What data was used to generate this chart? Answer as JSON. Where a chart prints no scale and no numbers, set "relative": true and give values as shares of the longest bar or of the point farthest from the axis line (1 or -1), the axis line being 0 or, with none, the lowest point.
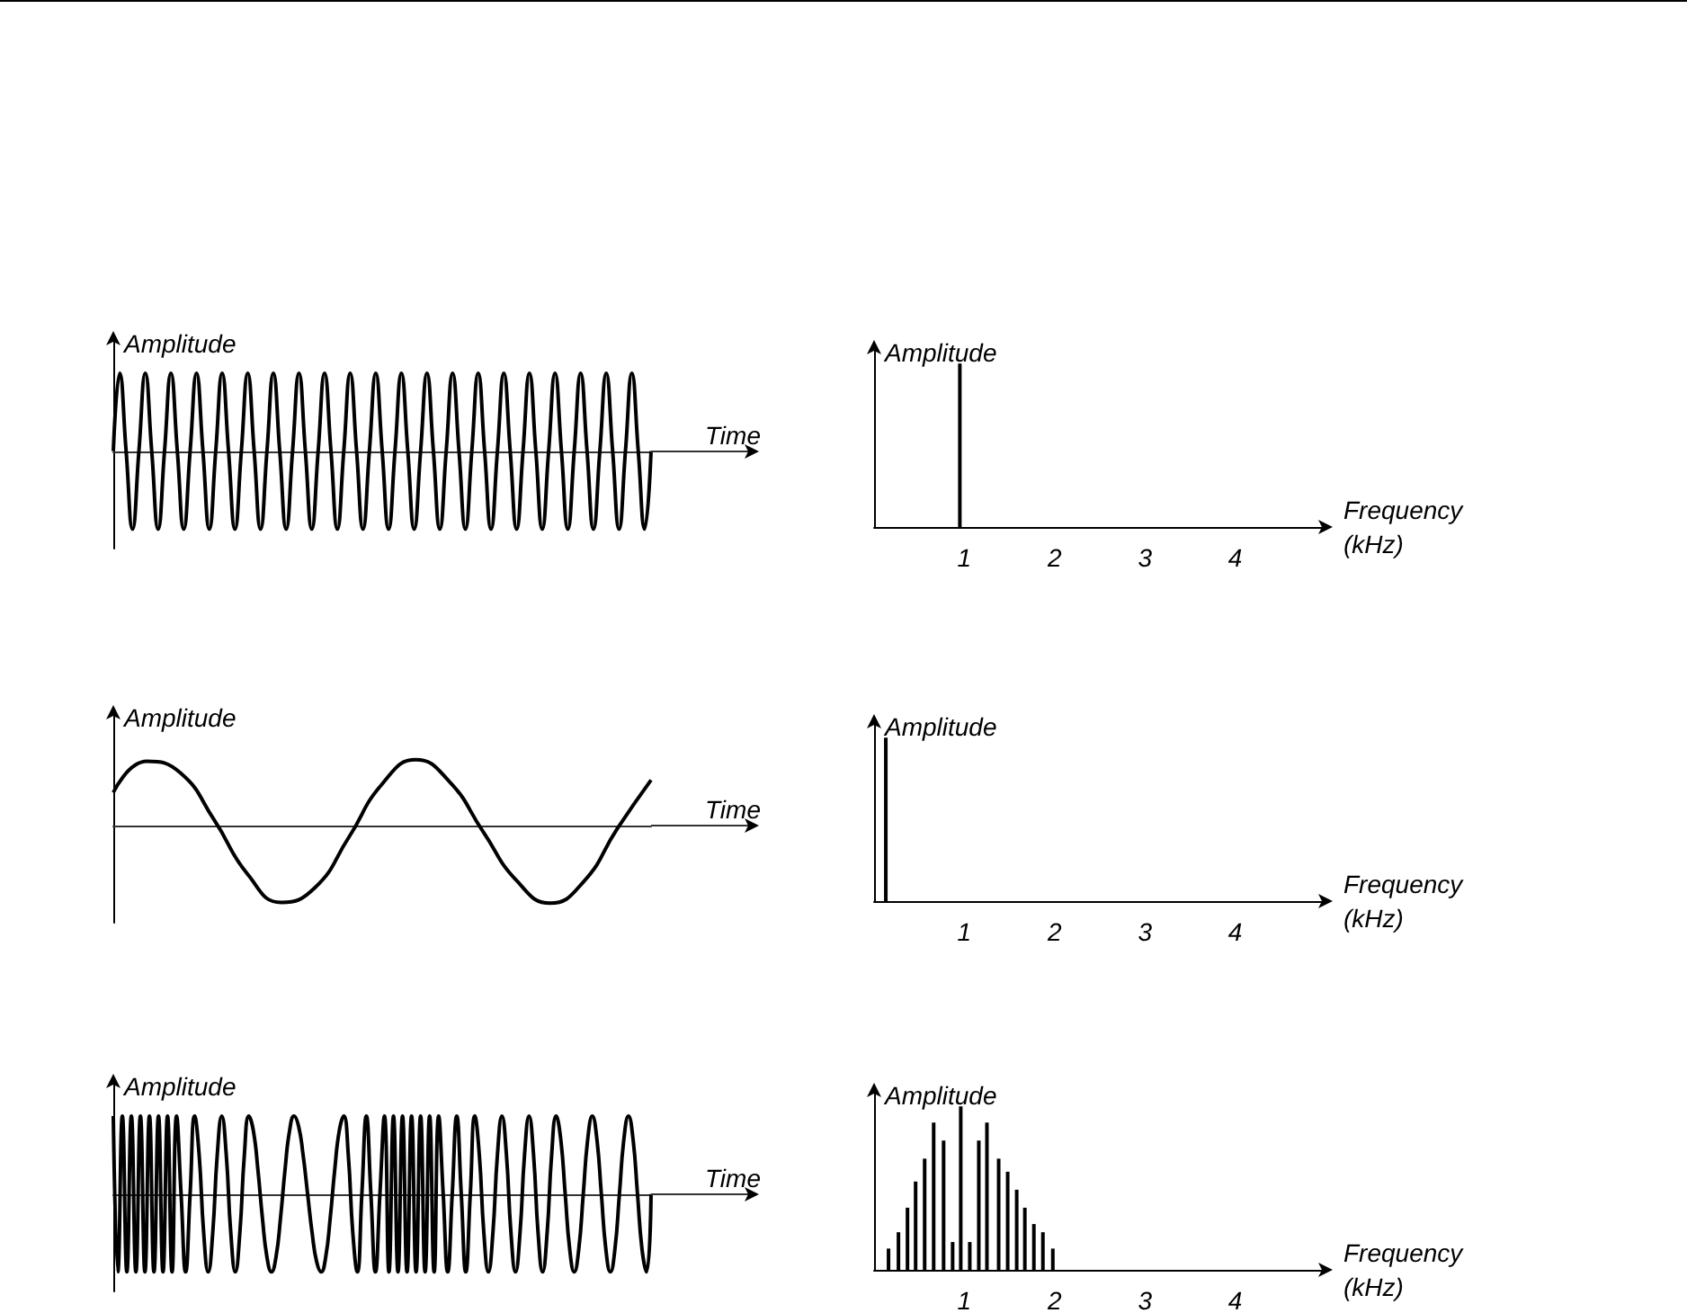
{
  "chart_data": [
    {
      "type": "line",
      "relative": true,
      "ylabel": "Amplitude",
      "xlabel": "Time",
      "color": "#000000",
      "categories": [
        null,
        null,
        null,
        null,
        null,
        null,
        null,
        null,
        null,
        null,
        null,
        null,
        null,
        null,
        null,
        null,
        null,
        null,
        null,
        null,
        null,
        null,
        null,
        null,
        null,
        null,
        null,
        null,
        null,
        null,
        null,
        null,
        null,
        null,
        null,
        null,
        null,
        null,
        null,
        null,
        null,
        null,
        null,
        null,
        null,
        null,
        null,
        null,
        null,
        null,
        null,
        null,
        null,
        null,
        null,
        null,
        null,
        null,
        null,
        null,
        null,
        null,
        null,
        null,
        null,
        null,
        null,
        null,
        null,
        null,
        null,
        null,
        null,
        null,
        null,
        null,
        null,
        null,
        null,
        null,
        null,
        null,
        null,
        null,
        null
      ],
      "values": [
        0,
        1,
        0,
        -1,
        0,
        1,
        0,
        -1,
        0,
        1,
        0,
        -1,
        0,
        1,
        0,
        -1,
        0,
        1,
        0,
        -1,
        0,
        1,
        0,
        -1,
        0,
        1,
        0,
        -1,
        0,
        1,
        0,
        -1,
        0,
        1,
        0,
        -1,
        0,
        1,
        0,
        -1,
        0,
        1,
        0,
        -1,
        0,
        1,
        0,
        -1,
        0,
        1,
        0,
        -1,
        0,
        1,
        0,
        -1,
        0,
        1,
        0,
        -1,
        0,
        1,
        0,
        -1,
        0,
        1,
        0,
        -1,
        0,
        1,
        0,
        -1,
        0,
        1,
        0,
        -1,
        0,
        1,
        0,
        -1,
        0,
        1,
        0,
        -1,
        0
      ]
    },
    {
      "type": "bar",
      "relative": true,
      "ylabel": "Amplitude",
      "xlabel": "Frequency (kHz)",
      "color": "#000000",
      "xlim": [
        0,
        5
      ],
      "xticks": [
        1,
        2,
        3,
        4
      ],
      "x": [
        0.95
      ],
      "values": [
        1
      ]
    },
    {
      "type": "line",
      "relative": true,
      "ylabel": "Amplitude",
      "xlabel": "Time",
      "color": "#000000",
      "categories": [
        null,
        null,
        null,
        null,
        null,
        null,
        null,
        null,
        null,
        null,
        null,
        null,
        null,
        null,
        null,
        null,
        null
      ],
      "values": [
        0.42,
        0.82,
        0.67,
        0.07,
        -0.63,
        -0.99,
        -0.8,
        -0.16,
        0.53,
        0.84,
        0.56,
        -0.08,
        -0.71,
        -1,
        -0.72,
        -0.04,
        0.58
      ]
    },
    {
      "type": "bar",
      "relative": true,
      "ylabel": "Amplitude",
      "xlabel": "Frequency (kHz)",
      "color": "#000000",
      "xlim": [
        0,
        5
      ],
      "xticks": [
        1,
        2,
        3,
        4
      ],
      "x": [
        0.13
      ],
      "values": [
        1
      ]
    },
    {
      "type": "line",
      "relative": true,
      "ylabel": "Amplitude",
      "xlabel": "Time",
      "color": "#000000",
      "categories": [
        null,
        null,
        null,
        null,
        null,
        null,
        null,
        null,
        null,
        null,
        null,
        null,
        null,
        null,
        null,
        null,
        null,
        null,
        null,
        null,
        null,
        null,
        null,
        null,
        null,
        null,
        null,
        null,
        null,
        null,
        null,
        null,
        null,
        null,
        null,
        null,
        null,
        null,
        null,
        null,
        null,
        null,
        null,
        null,
        null,
        null,
        null,
        null,
        null,
        null,
        null,
        null,
        null,
        null,
        null,
        null,
        null,
        null,
        null,
        null,
        null,
        null,
        null,
        null,
        null,
        null,
        null,
        null,
        null,
        null,
        null,
        null,
        null,
        null,
        null,
        null,
        null,
        null,
        null,
        null,
        null,
        null,
        null,
        null,
        null,
        null,
        null,
        null,
        null,
        null,
        null,
        null,
        null,
        null,
        null,
        null,
        null,
        null,
        null,
        null,
        null,
        null,
        null,
        null,
        null,
        null,
        null,
        null,
        null,
        null,
        null,
        null,
        null,
        null,
        null,
        null,
        null,
        null,
        null,
        null
      ],
      "values": [
        1,
        -1,
        1,
        -1,
        1,
        -1,
        1,
        -1,
        1,
        -1,
        1,
        -1,
        1,
        -1,
        1,
        0,
        -1,
        0,
        1,
        0.5,
        -0.5,
        -1,
        -0.5,
        0.5,
        1,
        0.5,
        -0.5,
        -1,
        -0.5,
        0.5,
        1,
        0.81,
        0.31,
        -0.31,
        -0.81,
        -1,
        -0.81,
        -0.31,
        0.31,
        0.81,
        1,
        0.87,
        0.5,
        0,
        -0.5,
        -0.87,
        -1,
        -0.81,
        -0.31,
        0.31,
        0.81,
        1,
        0.5,
        -0.5,
        -1,
        0,
        1,
        0,
        -1,
        0,
        1,
        -1,
        1,
        -1,
        1,
        -1,
        1,
        -1,
        1,
        -1,
        1,
        -1,
        1,
        0,
        -1,
        0,
        1,
        0,
        -1,
        0,
        1,
        0.5,
        -0.5,
        -1,
        -0.5,
        0.5,
        1,
        0.5,
        -0.5,
        -1,
        -0.5,
        0.5,
        1,
        0.5,
        -0.5,
        -1,
        -0.5,
        0.5,
        1,
        0.71,
        0,
        -0.71,
        -1,
        -0.71,
        0,
        0.71,
        1,
        0.71,
        0,
        -0.71,
        -1,
        -0.71,
        0,
        0.71,
        1,
        0.71,
        0,
        -0.71,
        -1,
        0
      ]
    },
    {
      "type": "bar",
      "relative": true,
      "ylabel": "Amplitude",
      "xlabel": "Frequency (kHz)",
      "color": "#000000",
      "xlim": [
        0,
        5
      ],
      "xticks": [
        1,
        2,
        3,
        4
      ],
      "x": [
        0.16,
        0.27,
        0.37,
        0.46,
        0.56,
        0.66,
        0.77,
        0.87,
        0.96,
        1.06,
        1.16,
        1.25,
        1.38,
        1.48,
        1.58,
        1.67,
        1.77,
        1.87,
        1.98
      ],
      "values": [
        0.13,
        0.23,
        0.38,
        0.54,
        0.68,
        0.9,
        0.79,
        0.17,
        1,
        0.17,
        0.79,
        0.9,
        0.68,
        0.6,
        0.49,
        0.38,
        0.28,
        0.23,
        0.13
      ]
    }
  ]
}
